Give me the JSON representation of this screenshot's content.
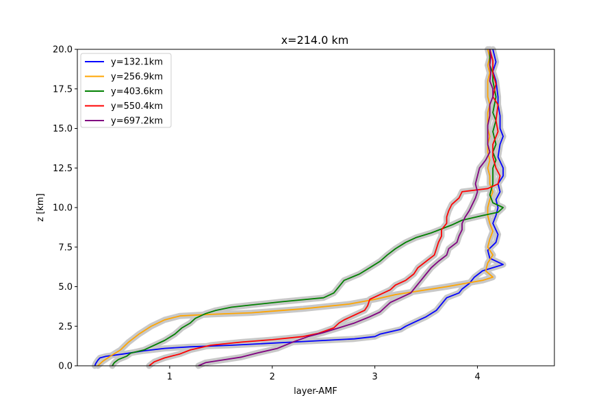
{
  "chart_data": {
    "type": "line",
    "title": "x=214.0 km",
    "xlabel": "layer-AMF",
    "ylabel": "z [km]",
    "xlim": [
      0.1,
      4.75
    ],
    "ylim": [
      0,
      20
    ],
    "xticks": [
      "1",
      "2",
      "3",
      "4"
    ],
    "xtick_values": [
      1,
      2,
      3,
      4
    ],
    "yticks": [
      "0.0",
      "2.5",
      "5.0",
      "7.5",
      "10.0",
      "12.5",
      "15.0",
      "17.5",
      "20.0"
    ],
    "ytick_values": [
      0,
      2.5,
      5,
      7.5,
      10,
      12.5,
      15,
      17.5,
      20
    ],
    "grid": false,
    "legend_position": "upper-left",
    "uncertainty_band_color": "#c8c8c8",
    "series": [
      {
        "name": "y=132.1km",
        "color": "#0000ff",
        "points": [
          [
            0.27,
            0
          ],
          [
            0.28,
            0.15
          ],
          [
            0.3,
            0.35
          ],
          [
            0.32,
            0.5
          ],
          [
            0.38,
            0.6
          ],
          [
            0.55,
            0.75
          ],
          [
            0.75,
            0.95
          ],
          [
            0.95,
            1.1
          ],
          [
            1.2,
            1.2
          ],
          [
            1.6,
            1.3
          ],
          [
            2.2,
            1.5
          ],
          [
            2.8,
            1.7
          ],
          [
            3.0,
            1.85
          ],
          [
            3.05,
            2.0
          ],
          [
            3.25,
            2.3
          ],
          [
            3.3,
            2.5
          ],
          [
            3.4,
            2.8
          ],
          [
            3.5,
            3.1
          ],
          [
            3.6,
            3.5
          ],
          [
            3.65,
            3.9
          ],
          [
            3.7,
            4.3
          ],
          [
            3.82,
            4.6
          ],
          [
            3.85,
            4.85
          ],
          [
            3.92,
            5.2
          ],
          [
            3.97,
            5.6
          ],
          [
            4.05,
            6.0
          ],
          [
            4.25,
            6.4
          ],
          [
            4.12,
            6.8
          ],
          [
            4.1,
            7.3
          ],
          [
            4.18,
            7.8
          ],
          [
            4.2,
            8.3
          ],
          [
            4.15,
            9.0
          ],
          [
            4.18,
            9.5
          ],
          [
            4.2,
            10.0
          ],
          [
            4.18,
            10.5
          ],
          [
            4.22,
            11.0
          ],
          [
            4.2,
            11.5
          ],
          [
            4.25,
            12.0
          ],
          [
            4.25,
            12.5
          ],
          [
            4.2,
            13.2
          ],
          [
            4.22,
            14.0
          ],
          [
            4.25,
            14.5
          ],
          [
            4.22,
            15.0
          ],
          [
            4.22,
            15.8
          ],
          [
            4.2,
            16.5
          ],
          [
            4.2,
            17.0
          ],
          [
            4.18,
            18.0
          ],
          [
            4.15,
            18.6
          ],
          [
            4.18,
            19.2
          ],
          [
            4.15,
            20
          ]
        ]
      },
      {
        "name": "y=256.9km",
        "color": "#ffa500",
        "points": [
          [
            0.3,
            0
          ],
          [
            0.35,
            0.3
          ],
          [
            0.42,
            0.6
          ],
          [
            0.52,
            1.0
          ],
          [
            0.6,
            1.5
          ],
          [
            0.7,
            2.0
          ],
          [
            0.82,
            2.5
          ],
          [
            0.95,
            2.9
          ],
          [
            1.1,
            3.15
          ],
          [
            1.4,
            3.25
          ],
          [
            1.8,
            3.35
          ],
          [
            2.3,
            3.6
          ],
          [
            2.75,
            3.9
          ],
          [
            3.0,
            4.2
          ],
          [
            3.2,
            4.5
          ],
          [
            3.5,
            4.8
          ],
          [
            3.7,
            5.0
          ],
          [
            4.05,
            5.4
          ],
          [
            4.15,
            5.6
          ],
          [
            4.08,
            6.0
          ],
          [
            4.1,
            6.5
          ],
          [
            4.15,
            7.0
          ],
          [
            4.1,
            7.5
          ],
          [
            4.12,
            8.0
          ],
          [
            4.15,
            8.5
          ],
          [
            4.12,
            9.0
          ],
          [
            4.1,
            9.5
          ],
          [
            4.1,
            10.0
          ],
          [
            4.12,
            10.5
          ],
          [
            4.15,
            11.0
          ],
          [
            4.12,
            11.5
          ],
          [
            4.12,
            12.0
          ],
          [
            4.1,
            12.5
          ],
          [
            4.12,
            13.0
          ],
          [
            4.1,
            13.5
          ],
          [
            4.1,
            14.0
          ],
          [
            4.12,
            14.5
          ],
          [
            4.1,
            15.0
          ],
          [
            4.1,
            16.0
          ],
          [
            4.12,
            16.5
          ],
          [
            4.1,
            17.0
          ],
          [
            4.1,
            18.0
          ],
          [
            4.12,
            18.5
          ],
          [
            4.1,
            19.0
          ],
          [
            4.12,
            19.5
          ],
          [
            4.1,
            20
          ]
        ]
      },
      {
        "name": "y=403.6km",
        "color": "#008000",
        "points": [
          [
            0.44,
            0
          ],
          [
            0.46,
            0.2
          ],
          [
            0.5,
            0.4
          ],
          [
            0.58,
            0.6
          ],
          [
            0.62,
            0.8
          ],
          [
            0.75,
            1.0
          ],
          [
            0.85,
            1.3
          ],
          [
            0.95,
            1.6
          ],
          [
            1.05,
            2.0
          ],
          [
            1.12,
            2.4
          ],
          [
            1.2,
            2.7
          ],
          [
            1.25,
            3.0
          ],
          [
            1.35,
            3.3
          ],
          [
            1.45,
            3.5
          ],
          [
            1.6,
            3.7
          ],
          [
            1.8,
            3.85
          ],
          [
            2.1,
            4.05
          ],
          [
            2.5,
            4.3
          ],
          [
            2.6,
            4.6
          ],
          [
            2.65,
            5.0
          ],
          [
            2.7,
            5.4
          ],
          [
            2.85,
            5.8
          ],
          [
            2.95,
            6.2
          ],
          [
            3.05,
            6.6
          ],
          [
            3.12,
            7.0
          ],
          [
            3.2,
            7.4
          ],
          [
            3.3,
            7.8
          ],
          [
            3.4,
            8.1
          ],
          [
            3.55,
            8.4
          ],
          [
            3.75,
            8.9
          ],
          [
            3.85,
            9.2
          ],
          [
            4.05,
            9.5
          ],
          [
            4.2,
            9.7
          ],
          [
            4.25,
            10.0
          ],
          [
            4.15,
            10.3
          ],
          [
            4.12,
            10.8
          ],
          [
            4.15,
            11.5
          ],
          [
            4.15,
            12.0
          ],
          [
            4.15,
            12.5
          ],
          [
            4.18,
            13.0
          ],
          [
            4.15,
            13.5
          ],
          [
            4.18,
            14.0
          ],
          [
            4.15,
            14.8
          ],
          [
            4.18,
            15.5
          ],
          [
            4.15,
            16.0
          ],
          [
            4.18,
            17.0
          ],
          [
            4.15,
            18.0
          ],
          [
            4.15,
            18.5
          ],
          [
            4.12,
            19.0
          ],
          [
            4.12,
            20
          ]
        ]
      },
      {
        "name": "y=550.4km",
        "color": "#ff0000",
        "points": [
          [
            0.8,
            0
          ],
          [
            0.85,
            0.25
          ],
          [
            0.95,
            0.5
          ],
          [
            1.1,
            0.75
          ],
          [
            1.2,
            1.0
          ],
          [
            1.4,
            1.3
          ],
          [
            1.7,
            1.5
          ],
          [
            2.0,
            1.65
          ],
          [
            2.3,
            1.85
          ],
          [
            2.45,
            2.05
          ],
          [
            2.6,
            2.4
          ],
          [
            2.65,
            2.7
          ],
          [
            2.7,
            2.9
          ],
          [
            2.8,
            3.2
          ],
          [
            2.9,
            3.5
          ],
          [
            2.93,
            3.8
          ],
          [
            2.95,
            4.2
          ],
          [
            3.05,
            4.5
          ],
          [
            3.15,
            4.8
          ],
          [
            3.2,
            5.1
          ],
          [
            3.3,
            5.4
          ],
          [
            3.38,
            5.8
          ],
          [
            3.42,
            6.2
          ],
          [
            3.5,
            6.6
          ],
          [
            3.58,
            7.0
          ],
          [
            3.6,
            7.4
          ],
          [
            3.62,
            7.8
          ],
          [
            3.65,
            8.2
          ],
          [
            3.65,
            8.6
          ],
          [
            3.7,
            9.0
          ],
          [
            3.7,
            9.4
          ],
          [
            3.72,
            9.8
          ],
          [
            3.75,
            10.2
          ],
          [
            3.82,
            10.6
          ],
          [
            3.85,
            11.0
          ],
          [
            4.1,
            11.2
          ],
          [
            4.2,
            11.5
          ],
          [
            4.22,
            12.0
          ],
          [
            4.18,
            12.5
          ],
          [
            4.15,
            13.2
          ],
          [
            4.15,
            14.0
          ],
          [
            4.2,
            14.8
          ],
          [
            4.18,
            15.5
          ],
          [
            4.2,
            16.5
          ],
          [
            4.15,
            17.0
          ],
          [
            4.18,
            17.8
          ],
          [
            4.15,
            18.5
          ],
          [
            4.15,
            19.3
          ],
          [
            4.12,
            20
          ]
        ]
      },
      {
        "name": "y=697.2km",
        "color": "#800080",
        "points": [
          [
            1.28,
            0
          ],
          [
            1.35,
            0.2
          ],
          [
            1.5,
            0.35
          ],
          [
            1.7,
            0.55
          ],
          [
            1.85,
            0.8
          ],
          [
            2.05,
            1.1
          ],
          [
            2.2,
            1.5
          ],
          [
            2.35,
            1.85
          ],
          [
            2.5,
            2.1
          ],
          [
            2.6,
            2.3
          ],
          [
            2.8,
            2.7
          ],
          [
            2.95,
            3.1
          ],
          [
            3.05,
            3.4
          ],
          [
            3.1,
            3.7
          ],
          [
            3.15,
            4.0
          ],
          [
            3.25,
            4.3
          ],
          [
            3.35,
            4.6
          ],
          [
            3.4,
            5.0
          ],
          [
            3.45,
            5.4
          ],
          [
            3.5,
            5.8
          ],
          [
            3.55,
            6.2
          ],
          [
            3.62,
            6.6
          ],
          [
            3.7,
            7.0
          ],
          [
            3.72,
            7.4
          ],
          [
            3.8,
            7.8
          ],
          [
            3.82,
            8.2
          ],
          [
            3.85,
            8.6
          ],
          [
            3.85,
            9.0
          ],
          [
            3.88,
            9.4
          ],
          [
            3.92,
            9.8
          ],
          [
            3.95,
            10.2
          ],
          [
            3.98,
            10.6
          ],
          [
            4.0,
            11.0
          ],
          [
            3.98,
            11.5
          ],
          [
            4.0,
            12.0
          ],
          [
            4.02,
            12.5
          ],
          [
            4.08,
            13.0
          ],
          [
            4.12,
            13.5
          ],
          [
            4.1,
            14.0
          ],
          [
            4.1,
            14.5
          ],
          [
            4.1,
            15.2
          ],
          [
            4.12,
            15.8
          ],
          [
            4.12,
            16.5
          ],
          [
            4.15,
            17.0
          ],
          [
            4.15,
            17.5
          ],
          [
            4.12,
            18.0
          ],
          [
            4.13,
            18.5
          ],
          [
            4.12,
            19.0
          ],
          [
            4.13,
            19.5
          ],
          [
            4.12,
            20
          ]
        ]
      }
    ]
  }
}
